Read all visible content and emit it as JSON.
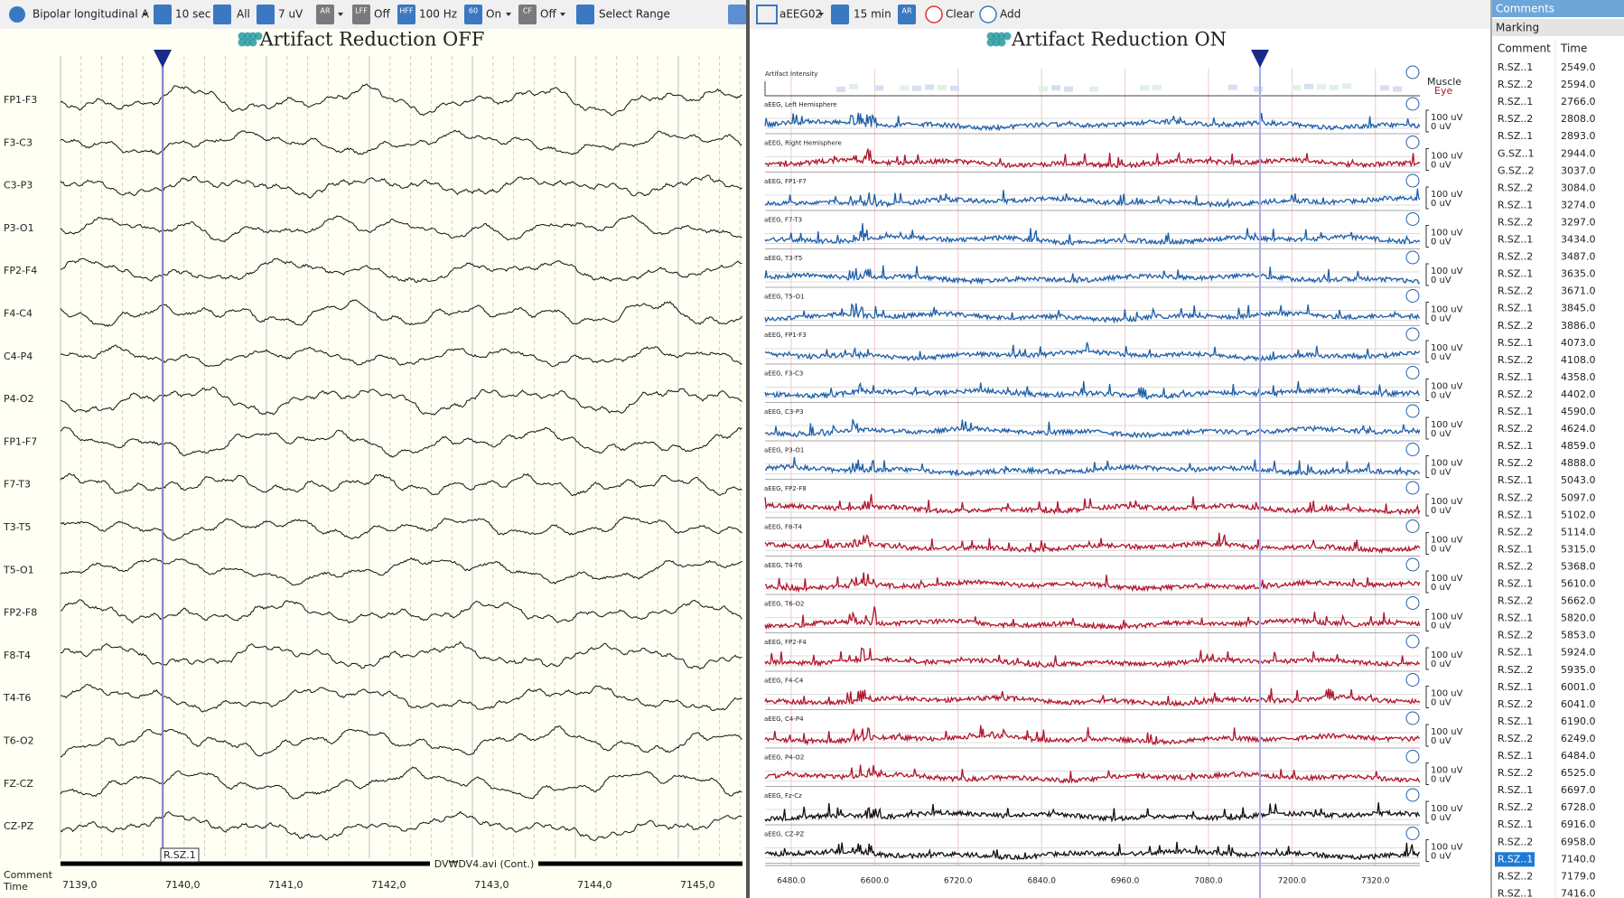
{
  "toolbar_left": {
    "montage": "Bipolar longitudinal A",
    "timebase": "10 sec",
    "channels": "All",
    "sensitivity": "7 uV",
    "icons": [
      "AR",
      "LFF",
      "HFF",
      "60",
      "CF"
    ],
    "lff": "Off",
    "hff": "100 Hz",
    "notch": "On",
    "cf": "Off",
    "select": "Select Range"
  },
  "toolbar_right": {
    "montage": "aEEG02",
    "timebase": "15 min",
    "icon": "AR",
    "clear": "Clear",
    "add": "Add"
  },
  "left_panel": {
    "title": "Artifact Reduction OFF",
    "channels": [
      "FP1-F3",
      "F3-C3",
      "C3-P3",
      "P3-O1",
      "FP2-F4",
      "F4-C4",
      "C4-P4",
      "P4-O2",
      "FP1-F7",
      "F7-T3",
      "T3-T5",
      "T5-O1",
      "FP2-F8",
      "F8-T4",
      "T4-T6",
      "T6-O2",
      "FZ-CZ",
      "CZ-PZ"
    ],
    "marker": "R.SZ.1",
    "video": "DV₩DV4.avi (Cont.)",
    "footer": [
      "Comment",
      "Time"
    ],
    "times": [
      "7139,0",
      "7140,0",
      "7141,0",
      "7142,0",
      "7143,0",
      "7144,0",
      "7145,0"
    ]
  },
  "right_panel": {
    "title": "Artifact Reduction ON",
    "artifact": {
      "label": "Artifact Intensity",
      "muscle": "Muscle",
      "eye": "Eye"
    },
    "scale_top": "100 uV",
    "scale_bottom": "0 uV",
    "channels": [
      {
        "name": "aEEG, Left Hemisphere",
        "color": "#1f5fa8"
      },
      {
        "name": "aEEG, Right Hemisphere",
        "color": "#b0162c"
      },
      {
        "name": "aEEG, FP1-F7",
        "color": "#1f5fa8"
      },
      {
        "name": "aEEG, F7-T3",
        "color": "#1f5fa8"
      },
      {
        "name": "aEEG, T3-T5",
        "color": "#1f5fa8"
      },
      {
        "name": "aEEG, T5-O1",
        "color": "#1f5fa8"
      },
      {
        "name": "aEEG, FP1-F3",
        "color": "#1f5fa8"
      },
      {
        "name": "aEEG, F3-C3",
        "color": "#1f5fa8"
      },
      {
        "name": "aEEG, C3-P3",
        "color": "#1f5fa8"
      },
      {
        "name": "aEEG, P3-O1",
        "color": "#1f5fa8"
      },
      {
        "name": "aEEG, FP2-F8",
        "color": "#b0162c"
      },
      {
        "name": "aEEG, F8-T4",
        "color": "#b0162c"
      },
      {
        "name": "aEEG, T4-T6",
        "color": "#b0162c"
      },
      {
        "name": "aEEG, T6-O2",
        "color": "#b0162c"
      },
      {
        "name": "aEEG, FP2-F4",
        "color": "#b0162c"
      },
      {
        "name": "aEEG, F4-C4",
        "color": "#b0162c"
      },
      {
        "name": "aEEG, C4-P4",
        "color": "#b0162c"
      },
      {
        "name": "aEEG, P4-O2",
        "color": "#b0162c"
      },
      {
        "name": "aEEG, Fz-Cz",
        "color": "#111111"
      },
      {
        "name": "aEEG, CZ-PZ",
        "color": "#111111"
      }
    ],
    "times": [
      "6480.0",
      "6600.0",
      "6720.0",
      "6840.0",
      "6960.0",
      "7080.0",
      "7200.0",
      "7320.0"
    ]
  },
  "comments": {
    "tab": "Comments",
    "subtab": "Marking",
    "columns": [
      "Comment",
      "Time"
    ],
    "rows": [
      {
        "comment": "R.SZ..1",
        "time": "2549.0"
      },
      {
        "comment": "R.SZ..2",
        "time": "2594.0"
      },
      {
        "comment": "R.SZ..1",
        "time": "2766.0"
      },
      {
        "comment": "R.SZ..2",
        "time": "2808.0"
      },
      {
        "comment": "R.SZ..1",
        "time": "2893.0"
      },
      {
        "comment": "G.SZ..1",
        "time": "2944.0"
      },
      {
        "comment": "G.SZ..2",
        "time": "3037.0"
      },
      {
        "comment": "R.SZ..2",
        "time": "3084.0"
      },
      {
        "comment": "R.SZ..1",
        "time": "3274.0"
      },
      {
        "comment": "R.SZ..2",
        "time": "3297.0"
      },
      {
        "comment": "R.SZ..1",
        "time": "3434.0"
      },
      {
        "comment": "R.SZ..2",
        "time": "3487.0"
      },
      {
        "comment": "R.SZ..1",
        "time": "3635.0"
      },
      {
        "comment": "R.SZ..2",
        "time": "3671.0"
      },
      {
        "comment": "R.SZ..1",
        "time": "3845.0"
      },
      {
        "comment": "R.SZ..2",
        "time": "3886.0"
      },
      {
        "comment": "R.SZ..1",
        "time": "4073.0"
      },
      {
        "comment": "R.SZ..2",
        "time": "4108.0"
      },
      {
        "comment": "R.SZ..1",
        "time": "4358.0"
      },
      {
        "comment": "R.SZ..2",
        "time": "4402.0"
      },
      {
        "comment": "R.SZ..1",
        "time": "4590.0"
      },
      {
        "comment": "R.SZ..2",
        "time": "4624.0"
      },
      {
        "comment": "R.SZ..1",
        "time": "4859.0"
      },
      {
        "comment": "R.SZ..2",
        "time": "4888.0"
      },
      {
        "comment": "R.SZ..1",
        "time": "5043.0"
      },
      {
        "comment": "R.SZ..2",
        "time": "5097.0"
      },
      {
        "comment": "R.SZ..1",
        "time": "5102.0"
      },
      {
        "comment": "R.SZ..2",
        "time": "5114.0"
      },
      {
        "comment": "R.SZ..1",
        "time": "5315.0"
      },
      {
        "comment": "R.SZ..2",
        "time": "5368.0"
      },
      {
        "comment": "R.SZ..1",
        "time": "5610.0"
      },
      {
        "comment": "R.SZ..2",
        "time": "5662.0"
      },
      {
        "comment": "R.SZ..1",
        "time": "5820.0"
      },
      {
        "comment": "R.SZ..2",
        "time": "5853.0"
      },
      {
        "comment": "R.SZ..1",
        "time": "5924.0"
      },
      {
        "comment": "R.SZ..2",
        "time": "5935.0"
      },
      {
        "comment": "R.SZ..1",
        "time": "6001.0"
      },
      {
        "comment": "R.SZ..2",
        "time": "6041.0"
      },
      {
        "comment": "R.SZ..1",
        "time": "6190.0"
      },
      {
        "comment": "R.SZ..2",
        "time": "6249.0"
      },
      {
        "comment": "R.SZ..1",
        "time": "6484.0"
      },
      {
        "comment": "R.SZ..2",
        "time": "6525.0"
      },
      {
        "comment": "R.SZ..1",
        "time": "6697.0"
      },
      {
        "comment": "R.SZ..2",
        "time": "6728.0"
      },
      {
        "comment": "R.SZ..1",
        "time": "6916.0"
      },
      {
        "comment": "R.SZ..2",
        "time": "6958.0"
      },
      {
        "comment": "R.SZ..1",
        "time": "7140.0",
        "selected": true
      },
      {
        "comment": "R.SZ..2",
        "time": "7179.0"
      },
      {
        "comment": "R.SZ..1",
        "time": "7416.0"
      }
    ]
  }
}
